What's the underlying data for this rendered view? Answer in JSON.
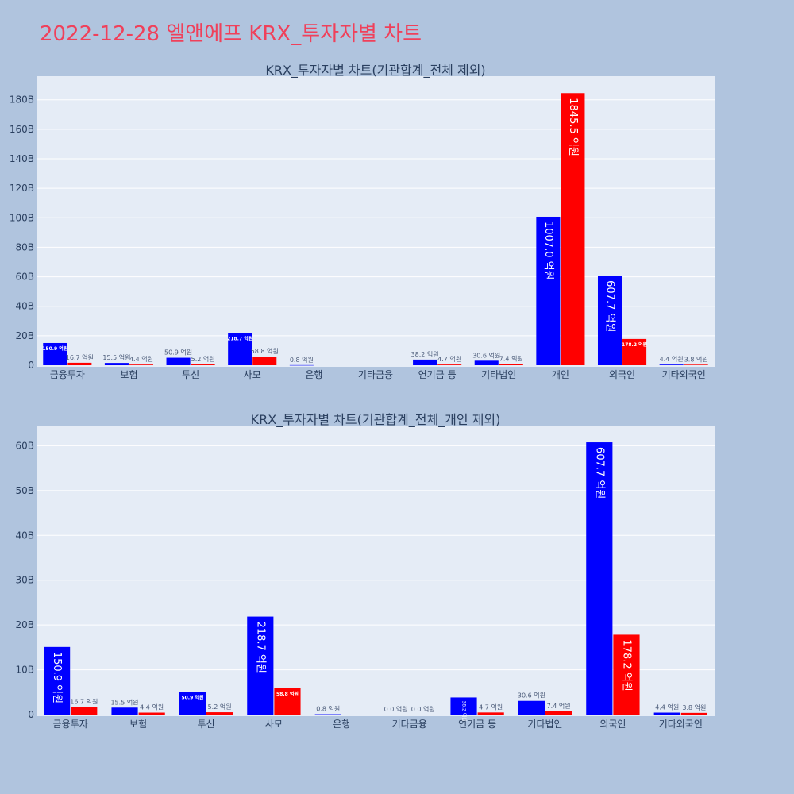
{
  "page": {
    "title": "2022-12-28 엘앤에프 KRX_투자자별 차트"
  },
  "chart_data": [
    {
      "type": "bar",
      "title": "KRX_투자자별 차트(기관합계_전체 제외)",
      "categories": [
        "금융투자",
        "보험",
        "투신",
        "사모",
        "은행",
        "기타금융",
        "연기금 등",
        "기타법인",
        "개인",
        "외국인",
        "기타외국인"
      ],
      "series": [
        {
          "color": "#0000ff",
          "values": [
            150.9,
            15.5,
            50.9,
            218.7,
            0.8,
            null,
            38.2,
            30.6,
            1007.0,
            607.7,
            4.4
          ],
          "labels": [
            "150.9 억원",
            "15.5 억원",
            "50.9 억원",
            "218.7 억원",
            "0.8 억원",
            "",
            "38.2 억원",
            "30.6 억원",
            "1007.0 억원",
            "607.7 억원",
            "4.4 억원"
          ]
        },
        {
          "color": "#ff0000",
          "values": [
            16.7,
            4.4,
            5.2,
            58.8,
            null,
            null,
            4.7,
            7.4,
            1845.5,
            178.2,
            3.8
          ],
          "labels": [
            "16.7 억원",
            "4.4 억원",
            "5.2 억원",
            "58.8 억원",
            "",
            "",
            "4.7 억원",
            "7.4 억원",
            "1845.5 억원",
            "178.2 억원",
            "3.8 억원"
          ]
        }
      ],
      "y_ticks": [
        "0",
        "20B",
        "40B",
        "60B",
        "80B",
        "100B",
        "120B",
        "140B",
        "160B",
        "180B"
      ],
      "ylim": [
        0,
        1960
      ],
      "ytick_step": 200,
      "grid": true
    },
    {
      "type": "bar",
      "title": "KRX_투자자별 차트(기관합계_전체_개인 제외)",
      "categories": [
        "금융투자",
        "보험",
        "투신",
        "사모",
        "은행",
        "기타금융",
        "연기금 등",
        "기타법인",
        "외국인",
        "기타외국인"
      ],
      "series": [
        {
          "color": "#0000ff",
          "values": [
            150.9,
            15.5,
            50.9,
            218.7,
            0.8,
            0.0,
            38.2,
            30.6,
            607.7,
            4.4
          ],
          "labels": [
            "150.9 억원",
            "15.5 억원",
            "50.9 억원",
            "218.7 억원",
            "0.8 억원",
            "0.0 억원",
            "38.2 억원",
            "30.6 억원",
            "607.7 억원",
            "4.4 억원"
          ]
        },
        {
          "color": "#ff0000",
          "values": [
            16.7,
            4.4,
            5.2,
            58.8,
            null,
            0.0,
            4.7,
            7.4,
            178.2,
            3.8
          ],
          "labels": [
            "16.7 억원",
            "4.4 억원",
            "5.2 억원",
            "58.8 억원",
            "",
            "0.0 억원",
            "4.7 억원",
            "7.4 억원",
            "178.2 억원",
            "3.8 억원"
          ]
        }
      ],
      "y_ticks": [
        "0",
        "10B",
        "20B",
        "30B",
        "40B",
        "50B",
        "60B"
      ],
      "ylim": [
        0,
        645
      ],
      "ytick_step": 100,
      "grid": true
    }
  ]
}
